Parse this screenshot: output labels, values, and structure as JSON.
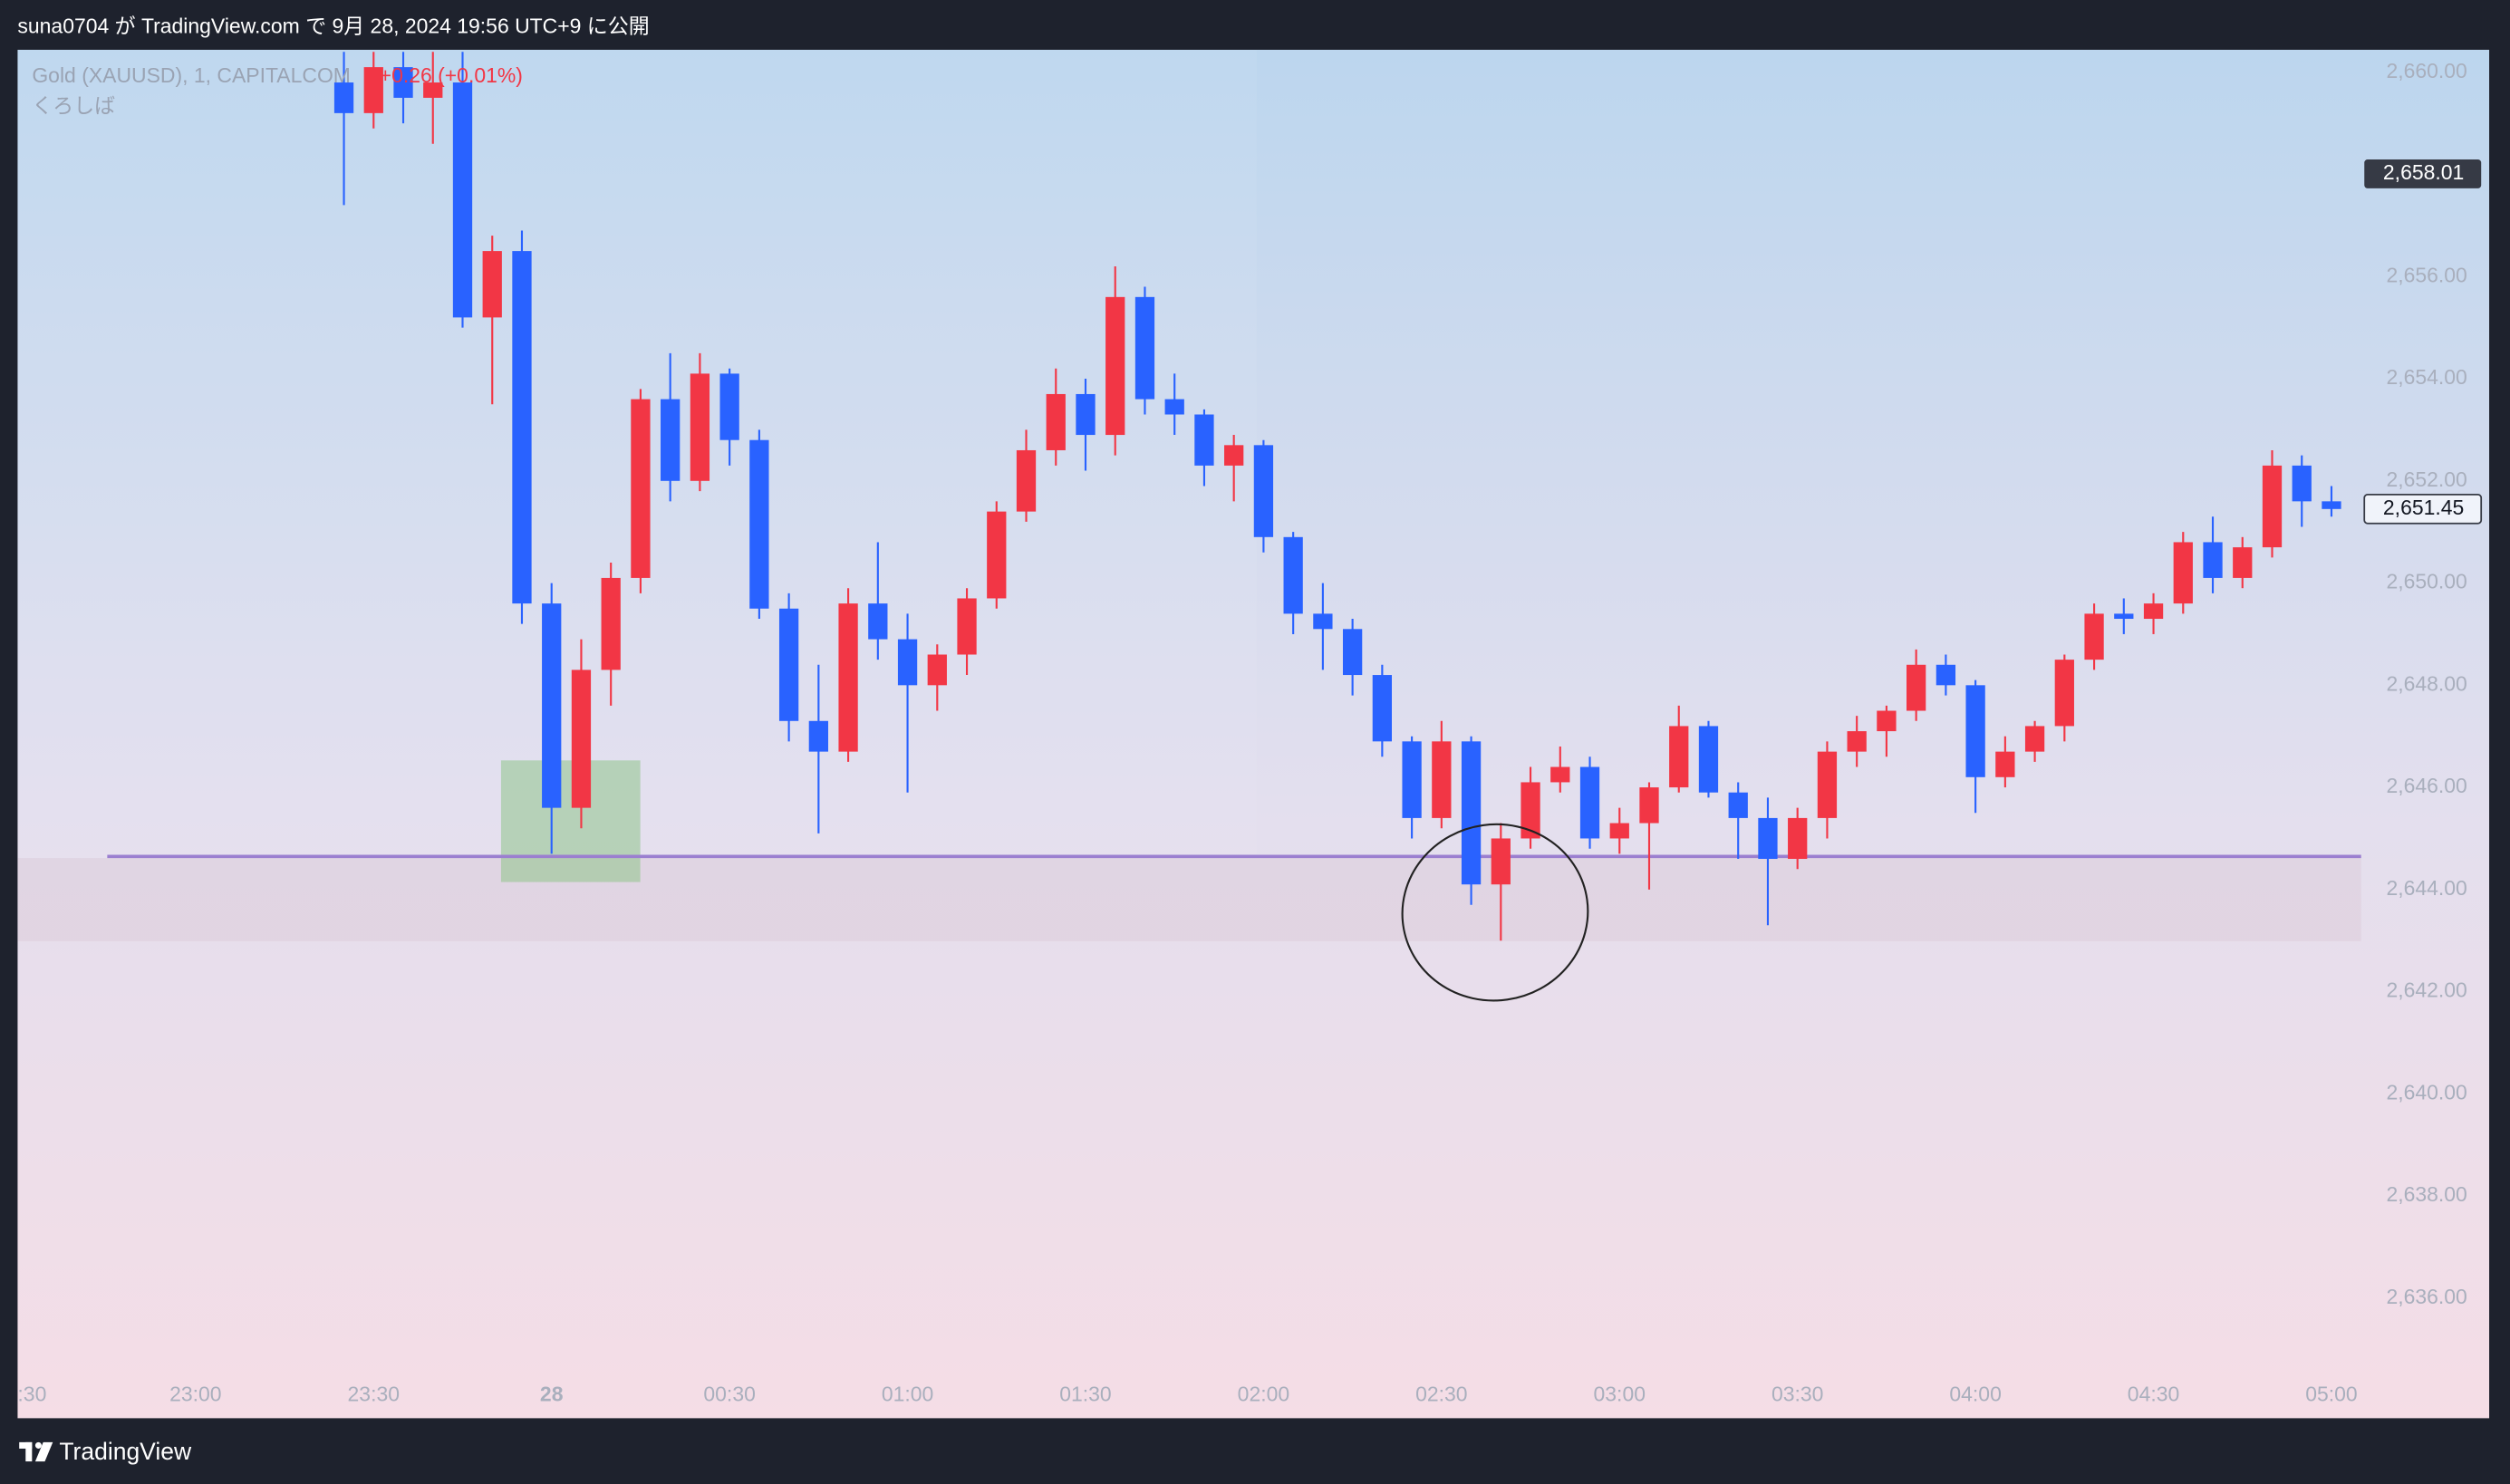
{
  "header": {
    "text": "suna0704 が TradingView.com で 9月 28, 2024 19:56 UTC+9 に公開"
  },
  "footer": {
    "brand": "TradingView"
  },
  "chart_data": {
    "type": "candlestick",
    "symbol": "Gold (XAUUSD), 1, CAPITALCOM",
    "change": "+0.26 (+0.01%)",
    "author": "くろしば",
    "up_color": "#f23645",
    "down_color": "#2962ff",
    "x": [
      "23:25",
      "23:30",
      "23:35",
      "23:40",
      "23:45",
      "23:50",
      "23:55",
      "00:00",
      "00:05",
      "00:10",
      "00:15",
      "00:20",
      "00:25",
      "00:30",
      "00:35",
      "00:40",
      "00:45",
      "00:50",
      "00:55",
      "01:00",
      "01:05",
      "01:10",
      "01:15",
      "01:20",
      "01:25",
      "01:30",
      "01:35",
      "01:40",
      "01:45",
      "01:50",
      "01:55",
      "02:00",
      "02:05",
      "02:10",
      "02:15",
      "02:20",
      "02:25",
      "02:30",
      "02:35",
      "02:40",
      "02:45",
      "02:50",
      "02:55",
      "03:00",
      "03:05",
      "03:10",
      "03:15",
      "03:20",
      "03:25",
      "03:30",
      "03:35",
      "03:40",
      "03:45",
      "03:50",
      "03:55",
      "04:00",
      "04:05",
      "04:10",
      "04:15",
      "04:20",
      "04:25",
      "04:30",
      "04:35",
      "04:40",
      "04:45",
      "04:50",
      "04:55",
      "05:00"
    ],
    "open": [
      2659.8,
      2659.2,
      2660.1,
      2659.5,
      2659.8,
      2655.2,
      2656.5,
      2649.6,
      2645.6,
      2648.3,
      2650.1,
      2653.6,
      2652.0,
      2654.1,
      2652.8,
      2649.5,
      2647.3,
      2646.7,
      2649.6,
      2648.9,
      2648.0,
      2648.6,
      2649.7,
      2651.4,
      2652.6,
      2653.7,
      2652.9,
      2655.6,
      2653.6,
      2653.3,
      2652.3,
      2652.7,
      2650.9,
      2649.4,
      2649.1,
      2648.2,
      2646.9,
      2645.4,
      2646.9,
      2644.1,
      2645.0,
      2646.1,
      2646.4,
      2645.0,
      2645.3,
      2646.0,
      2647.2,
      2645.9,
      2645.4,
      2644.6,
      2645.4,
      2646.7,
      2647.1,
      2647.5,
      2648.4,
      2648.0,
      2646.2,
      2646.7,
      2647.2,
      2648.5,
      2649.4,
      2649.3,
      2649.6,
      2650.8,
      2650.1,
      2650.7,
      2652.3,
      2651.6
    ],
    "high": [
      2660.4,
      2660.4,
      2660.4,
      2660.4,
      2660.4,
      2656.8,
      2656.9,
      2650.0,
      2648.9,
      2650.4,
      2653.8,
      2654.5,
      2654.5,
      2654.2,
      2653.0,
      2649.8,
      2648.4,
      2649.9,
      2650.8,
      2649.4,
      2648.8,
      2649.9,
      2651.6,
      2653.0,
      2654.2,
      2654.0,
      2656.2,
      2655.8,
      2654.1,
      2653.4,
      2652.9,
      2652.8,
      2651.0,
      2650.0,
      2649.3,
      2648.4,
      2647.0,
      2647.3,
      2647.0,
      2645.3,
      2646.4,
      2646.8,
      2646.6,
      2645.6,
      2646.1,
      2647.6,
      2647.3,
      2646.1,
      2645.8,
      2645.6,
      2646.9,
      2647.4,
      2647.6,
      2648.7,
      2648.6,
      2648.1,
      2647.0,
      2647.3,
      2648.6,
      2649.6,
      2649.7,
      2649.8,
      2651.0,
      2651.3,
      2650.9,
      2652.6,
      2652.5,
      2651.9
    ],
    "low": [
      2657.4,
      2658.9,
      2659.0,
      2658.6,
      2655.0,
      2653.5,
      2649.2,
      2644.7,
      2645.2,
      2647.6,
      2649.8,
      2651.6,
      2651.8,
      2652.3,
      2649.3,
      2646.9,
      2645.1,
      2646.5,
      2648.5,
      2645.9,
      2647.5,
      2648.2,
      2649.5,
      2651.2,
      2652.3,
      2652.2,
      2652.5,
      2653.3,
      2652.9,
      2651.9,
      2651.6,
      2650.6,
      2649.0,
      2648.3,
      2647.8,
      2646.6,
      2645.0,
      2645.2,
      2643.7,
      2643.0,
      2644.8,
      2645.9,
      2644.8,
      2644.7,
      2644.0,
      2645.9,
      2645.8,
      2644.6,
      2643.3,
      2644.4,
      2645.0,
      2646.4,
      2646.6,
      2647.3,
      2647.8,
      2645.5,
      2646.0,
      2646.5,
      2646.9,
      2648.3,
      2649.0,
      2649.0,
      2649.4,
      2649.8,
      2649.9,
      2650.5,
      2651.1,
      2651.3
    ],
    "close": [
      2659.2,
      2660.1,
      2659.5,
      2659.8,
      2655.2,
      2656.5,
      2649.6,
      2645.6,
      2648.3,
      2650.1,
      2653.6,
      2652.0,
      2654.1,
      2652.8,
      2649.5,
      2647.3,
      2646.7,
      2649.6,
      2648.9,
      2648.0,
      2648.6,
      2649.7,
      2651.4,
      2652.6,
      2653.7,
      2652.9,
      2655.6,
      2653.6,
      2653.3,
      2652.3,
      2652.7,
      2650.9,
      2649.4,
      2649.1,
      2648.2,
      2646.9,
      2645.4,
      2646.9,
      2644.1,
      2645.0,
      2646.1,
      2646.4,
      2645.0,
      2645.3,
      2646.0,
      2647.2,
      2645.9,
      2645.4,
      2644.6,
      2645.4,
      2646.7,
      2647.1,
      2647.5,
      2648.4,
      2648.0,
      2646.2,
      2646.7,
      2647.2,
      2648.5,
      2649.4,
      2649.3,
      2649.6,
      2650.8,
      2650.1,
      2650.7,
      2652.3,
      2651.6,
      2651.45
    ],
    "xlim": [
      "22:30",
      "05:05"
    ],
    "xticks": [
      {
        "value": "22:30",
        "label": ":30"
      },
      "23:00",
      "23:30",
      {
        "value": "00:00",
        "label": "28"
      },
      "00:30",
      "01:00",
      "01:30",
      "02:00",
      "02:30",
      "03:00",
      "03:30",
      "04:00",
      "04:30",
      "05:00"
    ],
    "ylim": [
      2633.65,
      2660.44
    ],
    "yticks": [
      {
        "value": 2660,
        "label": "2,660.00"
      },
      {
        "value": 2658,
        "label": "2,658.00"
      },
      {
        "value": 2656,
        "label": "2,656.00"
      },
      {
        "value": 2654,
        "label": "2,654.00"
      },
      {
        "value": 2652,
        "label": "2,652.00"
      },
      {
        "value": 2650,
        "label": "2,650.00"
      },
      {
        "value": 2648,
        "label": "2,648.00"
      },
      {
        "value": 2646,
        "label": "2,646.00"
      },
      {
        "value": 2644,
        "label": "2,644.00"
      },
      {
        "value": 2642,
        "label": "2,642.00"
      },
      {
        "value": 2640,
        "label": "2,640.00"
      },
      {
        "value": 2638,
        "label": "2,638.00"
      },
      {
        "value": 2636,
        "label": "2,636.00"
      }
    ],
    "price_labels": [
      {
        "value": 2658.01,
        "label": "2,658.01"
      },
      {
        "value": 2651.45,
        "label": "2,651.45"
      }
    ]
  }
}
